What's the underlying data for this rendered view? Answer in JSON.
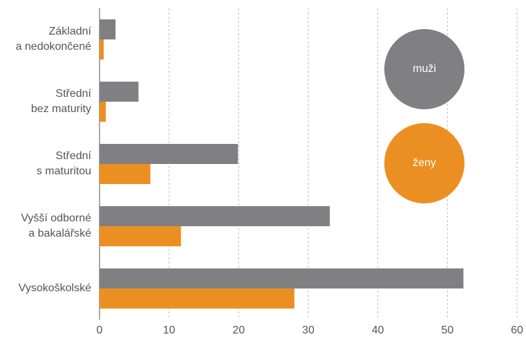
{
  "chart_data": {
    "type": "bar",
    "orientation": "horizontal",
    "categories": [
      [
        "Základní",
        "a nedokončené"
      ],
      [
        "Střední",
        "bez maturity"
      ],
      [
        "Střední",
        "s maturitou"
      ],
      [
        "Vyšší odborné",
        "a bakalářské"
      ],
      [
        "Vysokoškolské"
      ]
    ],
    "series": [
      {
        "name": "muži",
        "color": "#808083",
        "values": [
          2.3,
          5.6,
          19.9,
          33.1,
          52.3
        ]
      },
      {
        "name": "ženy",
        "color": "#ec8f22",
        "values": [
          0.6,
          0.9,
          7.3,
          11.7,
          28.0
        ]
      }
    ],
    "xlim": [
      0,
      60
    ],
    "xticks": [
      0,
      10,
      20,
      30,
      40,
      50,
      60
    ],
    "grid": true
  }
}
